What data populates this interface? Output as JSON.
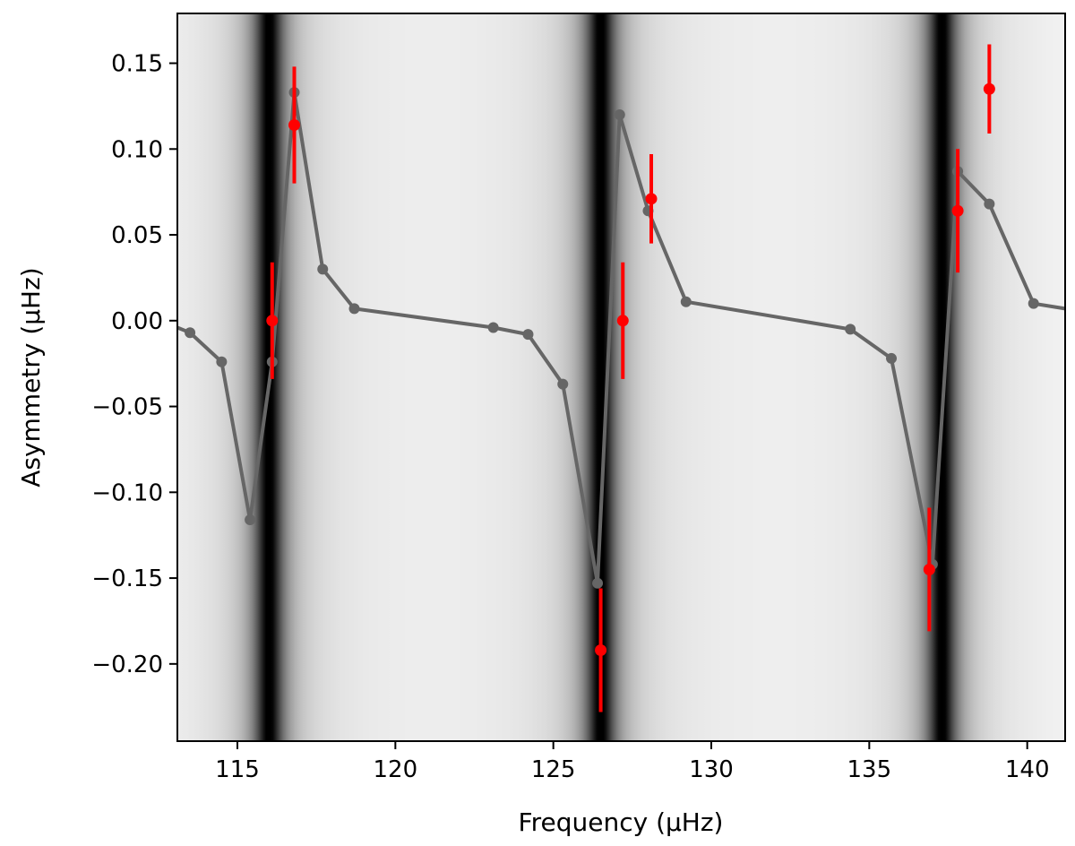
{
  "chart_data": {
    "type": "scatter",
    "xlabel": "Frequency (μHz)",
    "ylabel": "Asymmetry (μHz)",
    "xlim": [
      113.1,
      141.2
    ],
    "ylim": [
      -0.245,
      0.179
    ],
    "x_ticks": [
      115,
      120,
      125,
      130,
      135,
      140
    ],
    "x_tick_labels": [
      "115",
      "120",
      "125",
      "130",
      "135",
      "140"
    ],
    "y_ticks": [
      0.15,
      0.1,
      0.05,
      0.0,
      -0.05,
      -0.1,
      -0.15,
      -0.2
    ],
    "y_tick_labels": [
      "0.15",
      "0.10",
      "0.05",
      "0.00",
      "−0.05",
      "−0.10",
      "−0.15",
      "−0.20"
    ],
    "grid": false,
    "background": {
      "description": "grayscale density, dark vertical bands",
      "bands": [
        {
          "center": 116.0,
          "width": 0.45
        },
        {
          "center": 126.5,
          "width": 0.45
        },
        {
          "center": 137.3,
          "width": 0.45
        }
      ]
    },
    "series": [
      {
        "style": "line-with-markers",
        "color": "#666666",
        "x": [
          113.1,
          113.5,
          114.5,
          115.4,
          116.1,
          116.8,
          117.7,
          118.7,
          123.1,
          124.2,
          125.3,
          126.4,
          127.1,
          128.0,
          129.2,
          134.4,
          135.7,
          137.0,
          137.8,
          138.8,
          140.2,
          141.2
        ],
        "y": [
          -0.004,
          -0.007,
          -0.024,
          -0.116,
          -0.024,
          0.133,
          0.03,
          0.007,
          -0.004,
          -0.008,
          -0.037,
          -0.153,
          0.12,
          0.064,
          0.011,
          -0.005,
          -0.022,
          -0.142,
          0.087,
          0.068,
          0.01,
          0.007
        ]
      },
      {
        "style": "errorbar",
        "color": "#ff0000",
        "x": [
          116.1,
          116.8,
          126.5,
          127.2,
          128.1,
          136.9,
          137.8,
          138.8
        ],
        "y": [
          0.0,
          0.114,
          -0.192,
          0.0,
          0.071,
          -0.145,
          0.064,
          0.135
        ],
        "yerr": [
          0.034,
          0.034,
          0.036,
          0.034,
          0.026,
          0.036,
          0.036,
          0.026
        ]
      }
    ]
  }
}
